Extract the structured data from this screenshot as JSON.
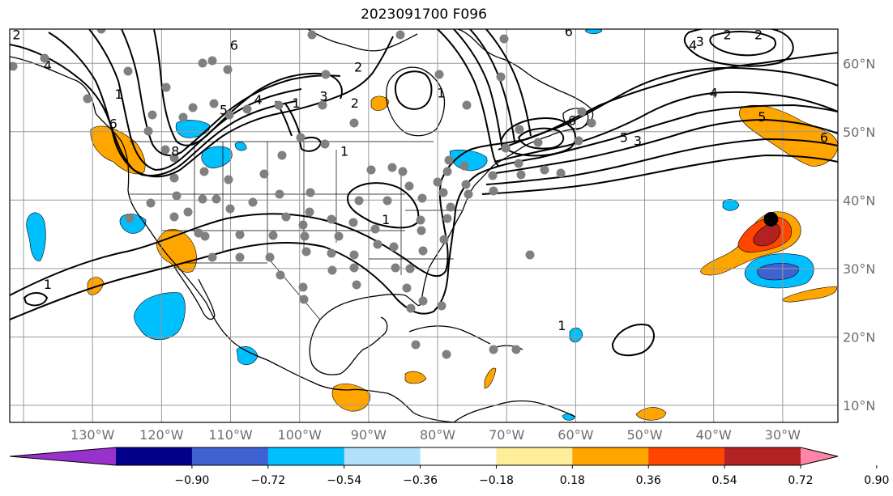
{
  "title": "2023091700 F096",
  "map": {
    "lon_range": [
      -142,
      -22
    ],
    "lat_range": [
      7.5,
      65
    ],
    "lon_gridlines": [
      -140,
      -130,
      -120,
      -110,
      -100,
      -90,
      -80,
      -70,
      -60,
      -50,
      -40,
      -30
    ],
    "lat_gridlines": [
      10,
      20,
      30,
      40,
      50,
      60
    ],
    "lon_tick_labels": [
      {
        "lon": -130,
        "text": "130°W"
      },
      {
        "lon": -120,
        "text": "120°W"
      },
      {
        "lon": -110,
        "text": "110°W"
      },
      {
        "lon": -100,
        "text": "100°W"
      },
      {
        "lon": -90,
        "text": "90°W"
      },
      {
        "lon": -80,
        "text": "80°W"
      },
      {
        "lon": -70,
        "text": "70°W"
      },
      {
        "lon": -60,
        "text": "60°W"
      },
      {
        "lon": -50,
        "text": "50°W"
      },
      {
        "lon": -40,
        "text": "40°W"
      },
      {
        "lon": -30,
        "text": "30°W"
      }
    ],
    "lat_tick_labels": [
      {
        "lat": 60,
        "text": "60°N"
      },
      {
        "lat": 50,
        "text": "50°N"
      },
      {
        "lat": 40,
        "text": "40°N"
      },
      {
        "lat": 30,
        "text": "30°N"
      },
      {
        "lat": 20,
        "text": "20°N"
      },
      {
        "lat": 10,
        "text": "10°N"
      }
    ],
    "storm_marker": {
      "lon": -31.7,
      "lat": 37.2
    },
    "contour_labels": [
      {
        "text": "2",
        "lon": -141,
        "lat": 63.5
      },
      {
        "text": "4",
        "lon": -136.5,
        "lat": 59
      },
      {
        "text": "1",
        "lon": -126.2,
        "lat": 54.8
      },
      {
        "text": "6",
        "lon": -127,
        "lat": 50.5
      },
      {
        "text": "8",
        "lon": -118,
        "lat": 46.5
      },
      {
        "text": "5",
        "lon": -111,
        "lat": 52.5
      },
      {
        "text": "4",
        "lon": -106,
        "lat": 54
      },
      {
        "text": "3",
        "lon": -96.5,
        "lat": 54.5
      },
      {
        "text": "2",
        "lon": -92,
        "lat": 53.5
      },
      {
        "text": "1",
        "lon": -100.5,
        "lat": 53.5
      },
      {
        "text": "6",
        "lon": -109.5,
        "lat": 62
      },
      {
        "text": "1",
        "lon": -93.5,
        "lat": 46.5
      },
      {
        "text": "2",
        "lon": -91.5,
        "lat": 58.8
      },
      {
        "text": "1",
        "lon": -79.5,
        "lat": 55
      },
      {
        "text": "6",
        "lon": -61,
        "lat": 64
      },
      {
        "text": "2",
        "lon": -38,
        "lat": 63.5
      },
      {
        "text": "3",
        "lon": -42,
        "lat": 62.5
      },
      {
        "text": "4",
        "lon": -43,
        "lat": 62
      },
      {
        "text": "2",
        "lon": -33.5,
        "lat": 63.5
      },
      {
        "text": "6",
        "lon": -60.5,
        "lat": 51
      },
      {
        "text": "5",
        "lon": -53,
        "lat": 48.5
      },
      {
        "text": "3",
        "lon": -51,
        "lat": 48
      },
      {
        "text": "4",
        "lon": -40,
        "lat": 55
      },
      {
        "text": "5",
        "lon": -33,
        "lat": 51.5
      },
      {
        "text": "6",
        "lon": -24,
        "lat": 48.5
      },
      {
        "text": "1",
        "lon": -87.5,
        "lat": 36.5
      },
      {
        "text": "1",
        "lon": -136.5,
        "lat": 27
      },
      {
        "text": "1",
        "lon": -62,
        "lat": 21
      }
    ]
  },
  "colorbar": {
    "colors": [
      "#9932cc",
      "#00008b",
      "#3e62d1",
      "#00bfff",
      "#b0e0fa",
      "#ffffff",
      "#ffee99",
      "#ffa500",
      "#ff4500",
      "#b22222",
      "#ff86a9"
    ],
    "tick_labels": [
      "−0.90",
      "−0.72",
      "−0.54",
      "−0.36",
      "−0.18",
      "0.18",
      "0.36",
      "0.54",
      "0.72",
      "0.90"
    ]
  }
}
